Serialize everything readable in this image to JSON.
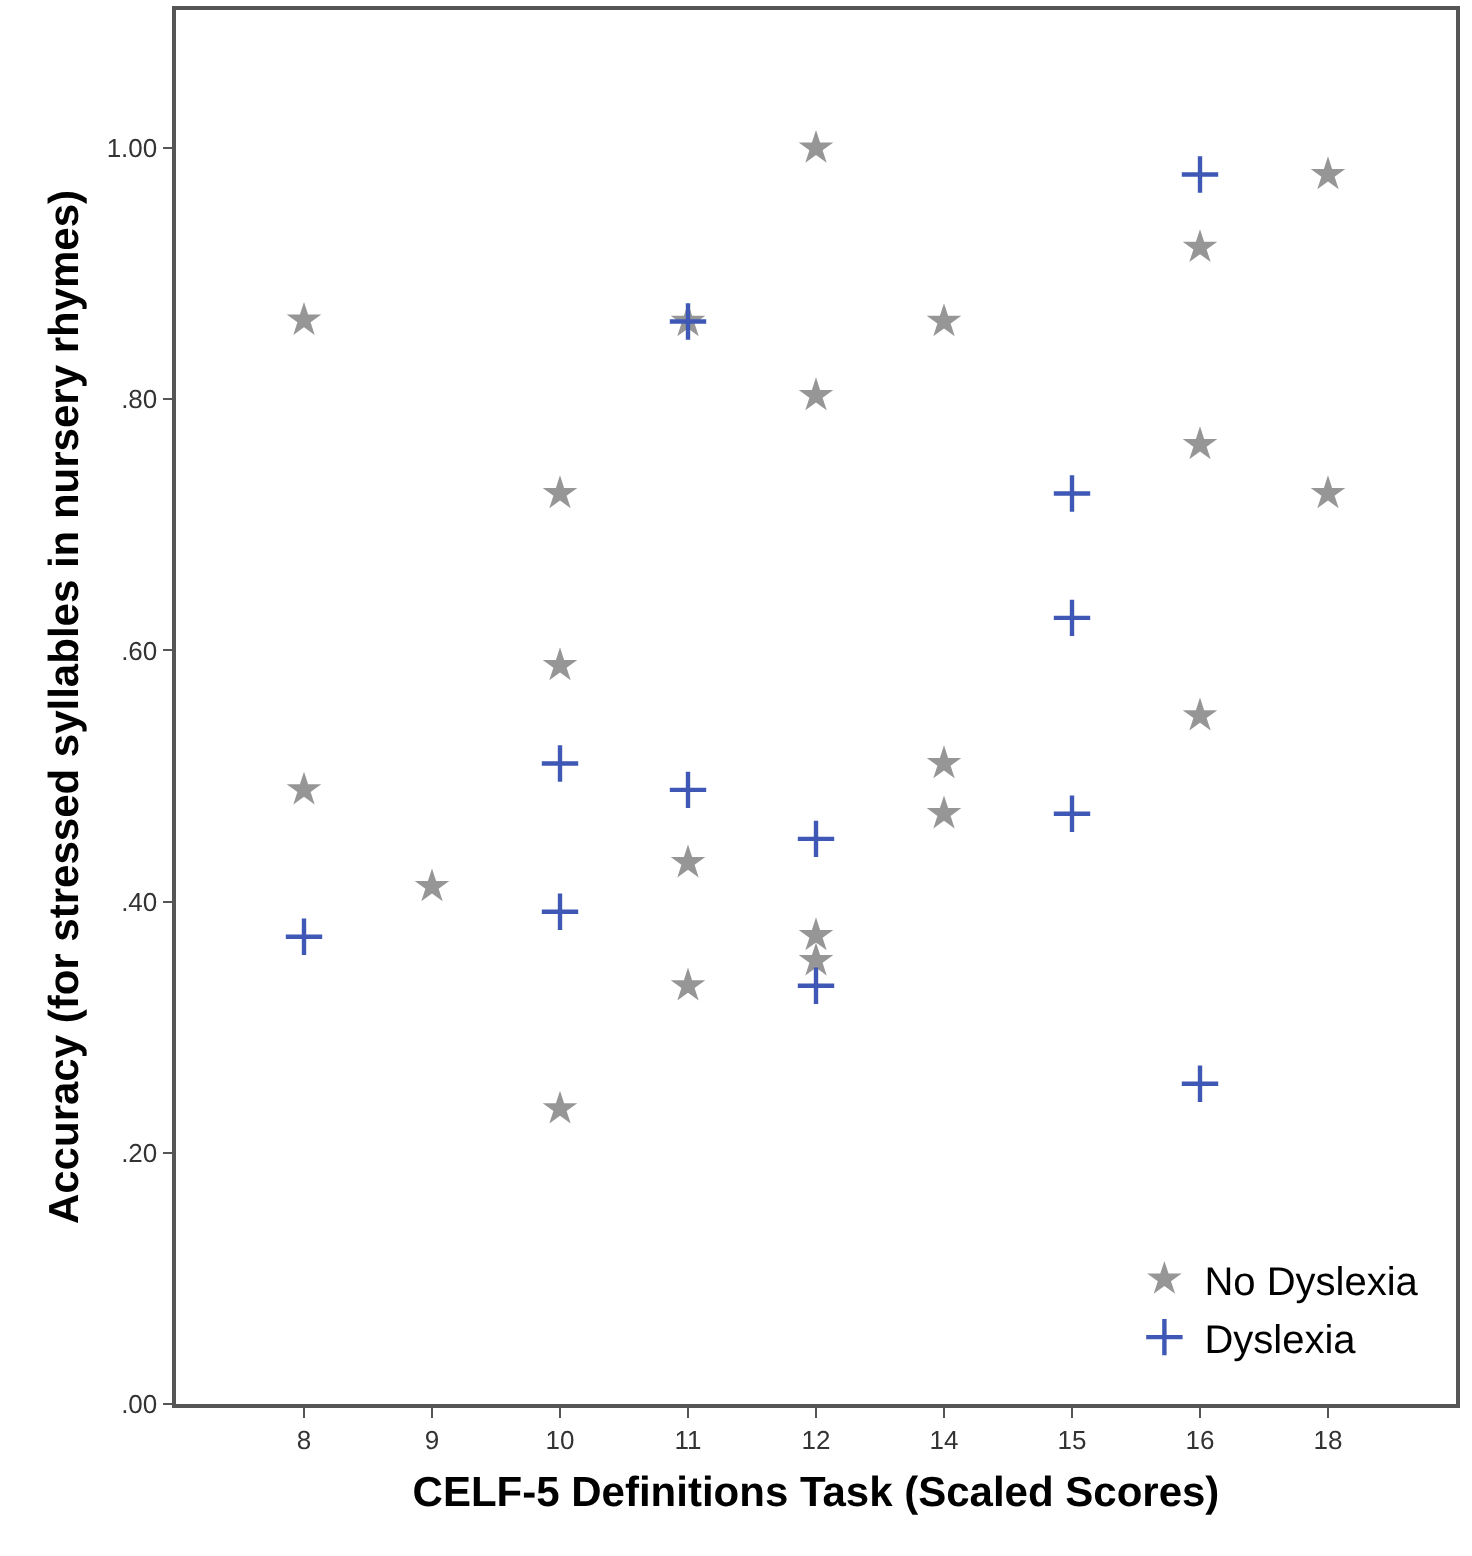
{
  "chart_data": {
    "type": "scatter",
    "xlabel": "CELF-5 Definitions Task (Scaled Scores)",
    "ylabel": "Accuracy (for stressed syllables in nursery rhymes)",
    "categories": [
      "8",
      "9",
      "10",
      "11",
      "12",
      "14",
      "15",
      "16",
      "18"
    ],
    "ylim": [
      0,
      1.11
    ],
    "yticks": [
      {
        "value": 0,
        "label": ".00"
      },
      {
        "value": 0.2,
        "label": ".20"
      },
      {
        "value": 0.4,
        "label": ".40"
      },
      {
        "value": 0.6,
        "label": ".60"
      },
      {
        "value": 0.8,
        "label": ".80"
      },
      {
        "value": 1,
        "label": "1.00"
      }
    ],
    "grid": false,
    "legend": "bottom right",
    "series": [
      {
        "name": "No Dyslexia",
        "color": "#969696",
        "marker": "star",
        "x": [
          "8",
          "8",
          "9",
          "10",
          "10",
          "10",
          "11",
          "11",
          "11",
          "12",
          "12",
          "12",
          "12",
          "14",
          "14",
          "14",
          "16",
          "16",
          "16",
          "18",
          "18"
        ],
        "values": [
          0.863,
          0.489,
          0.412,
          0.725,
          0.588,
          0.235,
          0.862,
          0.431,
          0.333,
          1.0,
          0.803,
          0.373,
          0.353,
          0.862,
          0.51,
          0.47,
          0.921,
          0.764,
          0.548,
          0.979,
          0.725
        ]
      },
      {
        "name": "Dyslexia",
        "color": "#3f58b5",
        "marker": "cross",
        "x": [
          "8",
          "10",
          "10",
          "11",
          "11",
          "12",
          "12",
          "15",
          "15",
          "15",
          "16",
          "16"
        ],
        "values": [
          0.372,
          0.51,
          0.392,
          0.862,
          0.489,
          0.45,
          0.333,
          0.725,
          0.626,
          0.47,
          0.979,
          0.255
        ]
      }
    ]
  }
}
